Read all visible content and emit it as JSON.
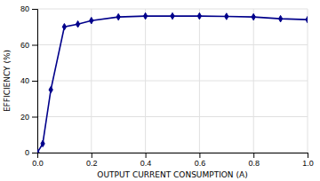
{
  "chart_data": {
    "type": "line",
    "xlabel": "OUTPUT CURRENT CONSUMPTION (A)",
    "ylabel": "EFFICIENCY (%)",
    "x": [
      0,
      0.02,
      0.05,
      0.1,
      0.15,
      0.2,
      0.3,
      0.4,
      0.5,
      0.6,
      0.7,
      0.8,
      0.9,
      1.0
    ],
    "values": [
      0,
      5,
      35,
      70,
      71.5,
      73.5,
      75.5,
      76.0,
      76.0,
      76.0,
      75.8,
      75.5,
      74.5,
      74.0
    ],
    "color": "#00008B",
    "marker": "diamond",
    "xlim": [
      0,
      1.0
    ],
    "ylim": [
      0,
      80
    ],
    "xticks": [
      {
        "value": 0,
        "label": "0.0"
      },
      0.2,
      0.4,
      0.6,
      0.8,
      {
        "value": 1.0,
        "label": "1.0"
      }
    ],
    "yticks": [
      0,
      20,
      40,
      60,
      80
    ],
    "grid": true
  }
}
